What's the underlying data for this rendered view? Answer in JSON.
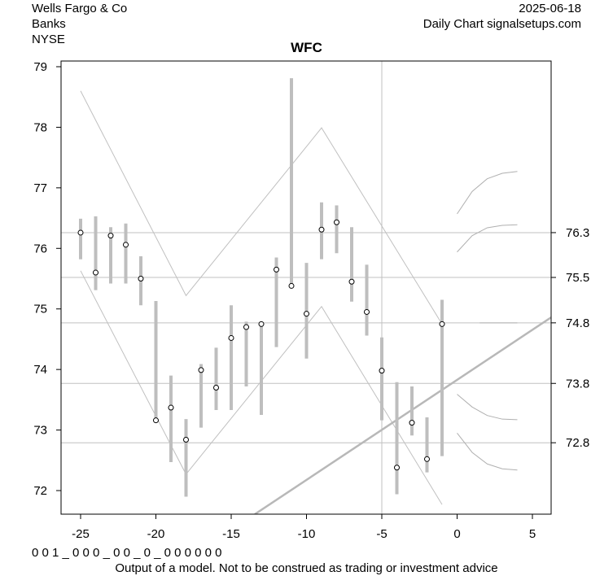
{
  "header": {
    "company": "Wells Fargo & Co",
    "sector": "Banks",
    "exchange": "NYSE",
    "date": "2025-06-18",
    "source": "Daily Chart signalsetups.com"
  },
  "footer": {
    "code": "0 0 1 _ 0 0 0 _ 0 0 _ 0 _ 0 0 0 0 0 0",
    "disclaimer": "Output of a model. Not to be construed as trading or investment advice"
  },
  "chart_data": {
    "type": "line",
    "title": "WFC",
    "xlabel": "",
    "ylabel": "",
    "xlim": [
      -26.3,
      6.3
    ],
    "ylim": [
      71.6,
      79.1
    ],
    "x_ticks": [
      -25,
      -20,
      -15,
      -10,
      -5,
      0,
      5
    ],
    "y_ticks": [
      72,
      73,
      74,
      75,
      76,
      77,
      78,
      79
    ],
    "grid": false,
    "colors": {
      "bars": "#bebebe",
      "lines": "#c0c0c0",
      "axis": "#000000"
    },
    "price_bars": [
      {
        "x": -25,
        "close": 76.26,
        "high": 76.49,
        "low": 75.82
      },
      {
        "x": -24,
        "close": 75.6,
        "high": 76.53,
        "low": 75.31
      },
      {
        "x": -23,
        "close": 76.21,
        "high": 76.35,
        "low": 75.42
      },
      {
        "x": -22,
        "close": 76.06,
        "high": 76.41,
        "low": 75.42
      },
      {
        "x": -21,
        "close": 75.5,
        "high": 75.87,
        "low": 75.06
      },
      {
        "x": -20,
        "close": 73.16,
        "high": 75.13,
        "low": 73.16
      },
      {
        "x": -19,
        "close": 73.37,
        "high": 73.9,
        "low": 72.47
      },
      {
        "x": -18,
        "close": 72.84,
        "high": 73.18,
        "low": 71.9
      },
      {
        "x": -17,
        "close": 73.99,
        "high": 74.09,
        "low": 73.04
      },
      {
        "x": -16,
        "close": 73.7,
        "high": 74.36,
        "low": 73.33
      },
      {
        "x": -15,
        "close": 74.52,
        "high": 75.06,
        "low": 73.33
      },
      {
        "x": -14,
        "close": 74.7,
        "high": 74.79,
        "low": 73.72
      },
      {
        "x": -13,
        "close": 74.75,
        "high": 74.75,
        "low": 73.25
      },
      {
        "x": -12,
        "close": 75.65,
        "high": 75.85,
        "low": 74.37
      },
      {
        "x": -11,
        "close": 75.38,
        "high": 78.81,
        "low": 75.38
      },
      {
        "x": -10,
        "close": 74.92,
        "high": 75.76,
        "low": 74.18
      },
      {
        "x": -9,
        "close": 76.31,
        "high": 76.76,
        "low": 75.82
      },
      {
        "x": -8,
        "close": 76.43,
        "high": 76.71,
        "low": 75.92
      },
      {
        "x": -7,
        "close": 75.45,
        "high": 76.35,
        "low": 75.12
      },
      {
        "x": -6,
        "close": 74.95,
        "high": 75.73,
        "low": 74.56
      },
      {
        "x": -5,
        "close": 73.98,
        "high": 74.53,
        "low": 73.16
      },
      {
        "x": -4,
        "close": 72.38,
        "high": 73.79,
        "low": 71.94
      },
      {
        "x": -3,
        "close": 73.12,
        "high": 73.72,
        "low": 72.91
      },
      {
        "x": -2,
        "close": 72.52,
        "high": 73.21,
        "low": 72.3
      },
      {
        "x": -1,
        "close": 74.75,
        "high": 75.15,
        "low": 72.57
      }
    ],
    "levels": [
      {
        "value": 76.26,
        "label": "76.3"
      },
      {
        "value": 75.52,
        "label": "75.5"
      },
      {
        "value": 74.77,
        "label": "74.8"
      },
      {
        "value": 73.77,
        "label": "73.8"
      },
      {
        "value": 72.79,
        "label": "72.8"
      }
    ],
    "vertical_marker_x": -5,
    "channel_upper": [
      [
        -25,
        78.6
      ],
      [
        -18,
        75.22
      ],
      [
        -9,
        77.99
      ],
      [
        -1,
        74.75
      ]
    ],
    "channel_lower": [
      [
        -25,
        75.63
      ],
      [
        -18,
        72.27
      ],
      [
        -9,
        75.04
      ],
      [
        -1,
        71.77
      ]
    ],
    "trend_line": [
      [
        -13.43,
        71.61
      ],
      [
        6.24,
        74.86
      ]
    ],
    "projections": [
      [
        [
          0,
          76.57
        ],
        [
          1,
          76.94
        ],
        [
          2,
          77.15
        ],
        [
          3,
          77.24
        ],
        [
          4,
          77.27
        ]
      ],
      [
        [
          0,
          75.94
        ],
        [
          1,
          76.21
        ],
        [
          2,
          76.34
        ],
        [
          3,
          76.38
        ],
        [
          4,
          76.39
        ]
      ],
      [
        [
          1.5,
          74.77
        ],
        [
          4,
          74.77
        ]
      ],
      [
        [
          0,
          73.59
        ],
        [
          1,
          73.38
        ],
        [
          2,
          73.24
        ],
        [
          3,
          73.18
        ],
        [
          4,
          73.17
        ]
      ],
      [
        [
          0,
          72.95
        ],
        [
          1,
          72.63
        ],
        [
          2,
          72.44
        ],
        [
          3,
          72.36
        ],
        [
          4,
          72.34
        ]
      ]
    ]
  }
}
